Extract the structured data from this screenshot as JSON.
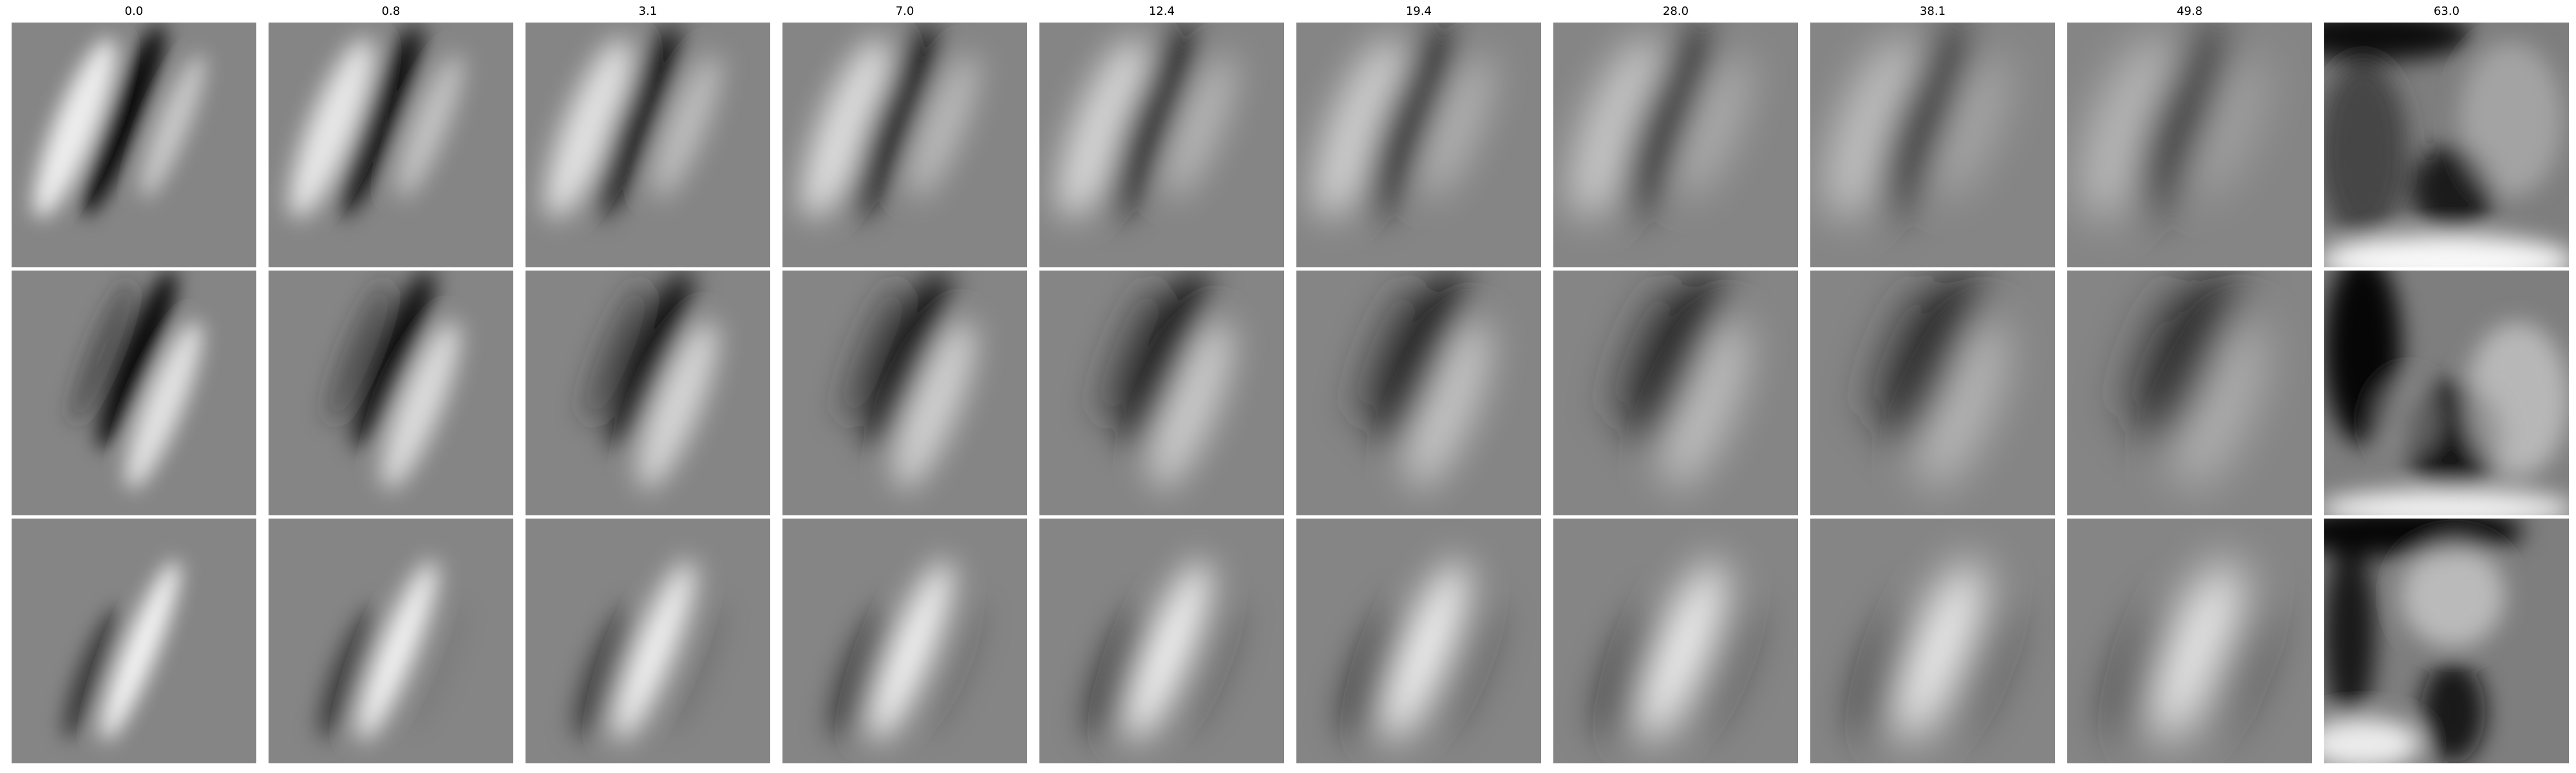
{
  "column_labels": [
    "0.0",
    "0.8",
    "3.1",
    "7.0",
    "12.4",
    "19.4",
    "28.0",
    "38.1",
    "49.8",
    "63.0"
  ],
  "grid": {
    "rows": 3,
    "columns": 10
  },
  "colormap": "grayscale"
}
